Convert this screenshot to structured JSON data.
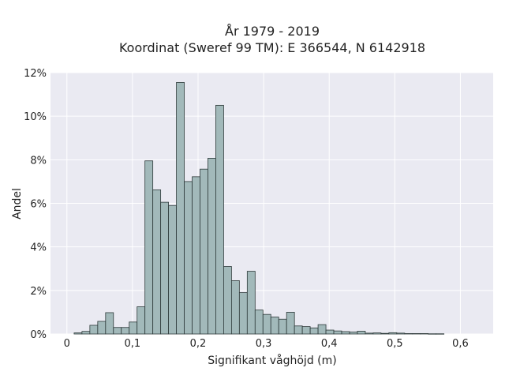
{
  "chart_data": {
    "type": "bar",
    "title": "År 1979 - 2019",
    "subtitle": "Koordinat (Sweref 99 TM): E 366544, N 6142918",
    "xlabel": "Signifikant våghöjd (m)",
    "ylabel": "Andel",
    "xlim": [
      -0.025,
      0.65
    ],
    "ylim": [
      0,
      0.12
    ],
    "x_ticks": [
      0,
      0.1,
      0.2,
      0.3,
      0.4,
      0.5,
      0.6
    ],
    "x_tick_labels": [
      "0",
      "0,1",
      "0,2",
      "0,3",
      "0,4",
      "0,5",
      "0,6"
    ],
    "y_ticks": [
      0,
      0.02,
      0.04,
      0.06,
      0.08,
      0.1,
      0.12
    ],
    "y_tick_labels": [
      "0%",
      "2%",
      "4%",
      "6%",
      "8%",
      "10%",
      "12%"
    ],
    "grid": true,
    "bin_width": 0.012,
    "bin_starts": [
      0.011,
      0.023,
      0.035,
      0.047,
      0.059,
      0.071,
      0.083,
      0.095,
      0.107,
      0.119,
      0.131,
      0.143,
      0.155,
      0.167,
      0.179,
      0.191,
      0.203,
      0.215,
      0.227,
      0.239,
      0.251,
      0.263,
      0.275,
      0.287,
      0.299,
      0.311,
      0.323,
      0.335,
      0.347,
      0.359,
      0.371,
      0.383,
      0.395,
      0.407,
      0.419,
      0.431,
      0.443,
      0.455,
      0.467,
      0.479,
      0.491,
      0.503,
      0.515,
      0.527,
      0.539,
      0.551,
      0.563
    ],
    "values": [
      0.0005,
      0.0012,
      0.004,
      0.0058,
      0.0098,
      0.003,
      0.003,
      0.0055,
      0.0125,
      0.0795,
      0.0662,
      0.0605,
      0.059,
      0.1155,
      0.07,
      0.0722,
      0.0757,
      0.0807,
      0.105,
      0.031,
      0.0245,
      0.019,
      0.0288,
      0.011,
      0.009,
      0.0078,
      0.0068,
      0.01,
      0.0037,
      0.0034,
      0.0028,
      0.0043,
      0.0018,
      0.0014,
      0.0011,
      0.0009,
      0.0013,
      0.0004,
      0.0005,
      0.0003,
      0.0006,
      0.0004,
      0.0002,
      0.0002,
      0.0002,
      0.0001,
      0.0001
    ],
    "colors": {
      "bar_fill": "#a2b9ba",
      "bar_edge": "#2e3a3a",
      "plot_bg": "#eaeaf2",
      "grid": "#ffffff"
    }
  }
}
